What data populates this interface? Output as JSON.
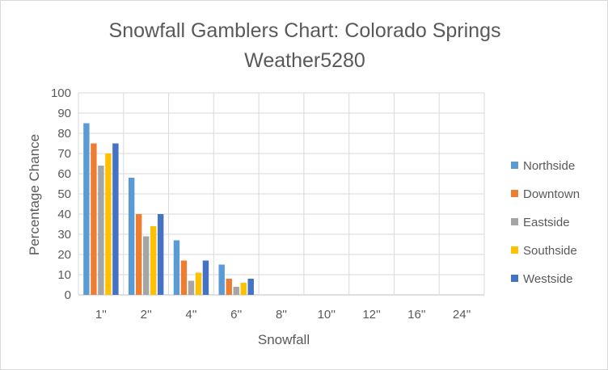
{
  "chart_data": {
    "type": "bar",
    "title": "Snowfall Gamblers Chart: Colorado Springs",
    "subtitle": "Weather5280",
    "xlabel": "Snowfall",
    "ylabel": "Percentage Chance",
    "categories": [
      "1''",
      "2''",
      "4''",
      "6''",
      "8''",
      "10''",
      "12''",
      "16''",
      "24''"
    ],
    "ylim": [
      0,
      100
    ],
    "yticks": [
      0,
      10,
      20,
      30,
      40,
      50,
      60,
      70,
      80,
      90,
      100
    ],
    "grid": true,
    "legend_position": "right",
    "series": [
      {
        "name": "Northside",
        "color": "#5b9bd5",
        "values": [
          85,
          58,
          27,
          15,
          0,
          0,
          0,
          0,
          0
        ]
      },
      {
        "name": "Downtown",
        "color": "#ed7d31",
        "values": [
          75,
          40,
          17,
          8,
          0,
          0,
          0,
          0,
          0
        ]
      },
      {
        "name": "Eastside",
        "color": "#a5a5a5",
        "values": [
          64,
          29,
          7,
          4,
          0,
          0,
          0,
          0,
          0
        ]
      },
      {
        "name": "Southside",
        "color": "#ffc000",
        "values": [
          70,
          34,
          11,
          6,
          0,
          0,
          0,
          0,
          0
        ]
      },
      {
        "name": "Westside",
        "color": "#4472c4",
        "values": [
          75,
          40,
          17,
          8,
          0,
          0,
          0,
          0,
          0
        ]
      }
    ]
  }
}
